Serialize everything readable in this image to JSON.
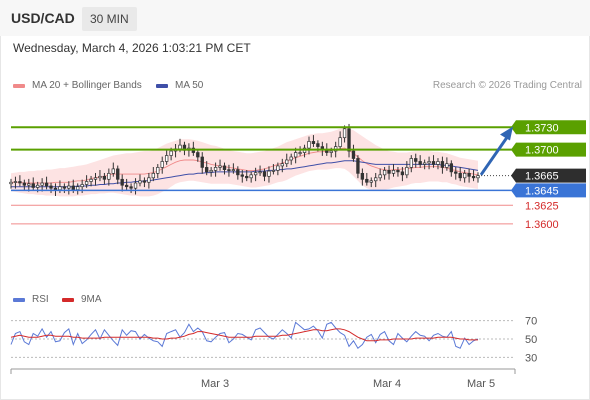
{
  "header": {
    "symbol": "USD/CAD",
    "timeframe": "30 MIN"
  },
  "datetime": "Wednesday, March 4, 2026 1:03:21 PM CET",
  "legend": {
    "bollinger_label": "MA 20 + Bollinger Bands",
    "ma50_label": "MA 50",
    "rsi_label": "RSI",
    "ma9_label": "9MA"
  },
  "research": "Research © 2026 Trading Central",
  "colors": {
    "green_level": "#5aa000",
    "support_blue": "#3a74d6",
    "red_level": "#f08a8a",
    "bollinger_fill": "#fde3e3",
    "ma20": "#f08a8a",
    "ma50": "#3f4fa8",
    "candle": "#333333",
    "arrow": "#2f65b4",
    "rsi_line": "#5b79d6",
    "rsi_ma": "#d42a2a"
  },
  "chart_data": {
    "type": "candlestick",
    "title": "USD/CAD",
    "timeframe": "30 MIN",
    "ylim": [
      1.3585,
      1.376
    ],
    "x_labels": [
      "Mar 3",
      "Mar 4",
      "Mar 5"
    ],
    "levels": [
      {
        "value": 1.373,
        "label": "1.3730",
        "kind": "resistance"
      },
      {
        "value": 1.37,
        "label": "1.3700",
        "kind": "resistance"
      },
      {
        "value": 1.3665,
        "label": "1.3665",
        "kind": "current"
      },
      {
        "value": 1.3645,
        "label": "1.3645",
        "kind": "pivot"
      },
      {
        "value": 1.3625,
        "label": "1.3625",
        "kind": "support"
      },
      {
        "value": 1.36,
        "label": "1.3600",
        "kind": "support"
      }
    ],
    "close": [
      1.3656,
      1.3657,
      1.3655,
      1.3652,
      1.3654,
      1.3649,
      1.3652,
      1.3655,
      1.3651,
      1.3648,
      1.3646,
      1.365,
      1.3648,
      1.3651,
      1.3646,
      1.365,
      1.3653,
      1.3657,
      1.366,
      1.3662,
      1.3664,
      1.366,
      1.3668,
      1.3674,
      1.366,
      1.3652,
      1.365,
      1.3648,
      1.3655,
      1.3658,
      1.3656,
      1.3662,
      1.3668,
      1.3676,
      1.3684,
      1.3692,
      1.3698,
      1.3701,
      1.3706,
      1.3699,
      1.3702,
      1.3696,
      1.369,
      1.3676,
      1.367,
      1.3672,
      1.3676,
      1.3678,
      1.3673,
      1.3672,
      1.3673,
      1.3666,
      1.3664,
      1.3662,
      1.3666,
      1.3669,
      1.367,
      1.3664,
      1.3671,
      1.3672,
      1.3678,
      1.3681,
      1.3686,
      1.369,
      1.3696,
      1.3696,
      1.3702,
      1.3711,
      1.3708,
      1.3704,
      1.37,
      1.3696,
      1.3698,
      1.3704,
      1.3716,
      1.3728,
      1.3698,
      1.3688,
      1.3668,
      1.366,
      1.3656,
      1.3658,
      1.3662,
      1.3666,
      1.3672,
      1.3668,
      1.3672,
      1.367,
      1.3666,
      1.3676,
      1.3688,
      1.3684,
      1.368,
      1.3682,
      1.3684,
      1.368,
      1.3684,
      1.3676,
      1.3681,
      1.367,
      1.3668,
      1.3662,
      1.3668,
      1.3664,
      1.3662,
      1.3665
    ],
    "bb_upper": [
      1.3668,
      1.3669,
      1.367,
      1.367,
      1.3671,
      1.3671,
      1.3672,
      1.3672,
      1.3673,
      1.3673,
      1.3674,
      1.3675,
      1.3675,
      1.3676,
      1.3677,
      1.3678,
      1.3679,
      1.368,
      1.3682,
      1.3684,
      1.3686,
      1.3688,
      1.369,
      1.3692,
      1.3693,
      1.3694,
      1.3695,
      1.3695,
      1.3696,
      1.3697,
      1.3698,
      1.3698,
      1.3699,
      1.3702,
      1.3705,
      1.3708,
      1.371,
      1.3712,
      1.3714,
      1.3714,
      1.3714,
      1.3713,
      1.3712,
      1.371,
      1.3708,
      1.3706,
      1.3705,
      1.3703,
      1.3701,
      1.3699,
      1.3698,
      1.3697,
      1.3696,
      1.3695,
      1.3695,
      1.3696,
      1.3697,
      1.3698,
      1.37,
      1.3702,
      1.3704,
      1.3707,
      1.371,
      1.3712,
      1.3714,
      1.3716,
      1.3718,
      1.372,
      1.3721,
      1.3722,
      1.3722,
      1.3723,
      1.3724,
      1.3726,
      1.3728,
      1.373,
      1.3728,
      1.3726,
      1.3722,
      1.3718,
      1.3714,
      1.371,
      1.3706,
      1.3703,
      1.37,
      1.3698,
      1.3697,
      1.3696,
      1.3696,
      1.3696,
      1.3697,
      1.3698,
      1.3698,
      1.3698,
      1.3698,
      1.3697,
      1.3697,
      1.3696,
      1.3695,
      1.3693,
      1.3691,
      1.3689,
      1.3688,
      1.3687,
      1.3686,
      1.3685
    ],
    "bb_lower": [
      1.3644,
      1.3643,
      1.3642,
      1.3641,
      1.364,
      1.364,
      1.3639,
      1.3639,
      1.3638,
      1.3638,
      1.3638,
      1.3637,
      1.3637,
      1.3637,
      1.3637,
      1.3638,
      1.3638,
      1.3639,
      1.364,
      1.364,
      1.3641,
      1.3641,
      1.3642,
      1.3642,
      1.3641,
      1.364,
      1.3639,
      1.3638,
      1.3638,
      1.3637,
      1.3637,
      1.3637,
      1.3638,
      1.364,
      1.3643,
      1.3646,
      1.365,
      1.3654,
      1.3656,
      1.3657,
      1.3658,
      1.3658,
      1.3657,
      1.3656,
      1.3655,
      1.3654,
      1.3654,
      1.3654,
      1.3654,
      1.3654,
      1.3653,
      1.3652,
      1.3651,
      1.365,
      1.3649,
      1.3649,
      1.365,
      1.3651,
      1.3652,
      1.3654,
      1.3656,
      1.3657,
      1.3659,
      1.3662,
      1.3665,
      1.3667,
      1.3669,
      1.3671,
      1.3672,
      1.3673,
      1.3673,
      1.3673,
      1.3674,
      1.3675,
      1.3675,
      1.3674,
      1.367,
      1.3664,
      1.3658,
      1.3652,
      1.3648,
      1.3646,
      1.3645,
      1.3645,
      1.3646,
      1.3647,
      1.3649,
      1.365,
      1.3651,
      1.3652,
      1.3654,
      1.3655,
      1.3655,
      1.3656,
      1.3657,
      1.3657,
      1.3657,
      1.3656,
      1.3656,
      1.3654,
      1.3653,
      1.3651,
      1.365,
      1.3649,
      1.3648,
      1.3647
    ],
    "ma20": [
      1.3656,
      1.3656,
      1.3656,
      1.3655,
      1.3655,
      1.3655,
      1.3655,
      1.3655,
      1.3655,
      1.3655,
      1.3656,
      1.3656,
      1.3656,
      1.3656,
      1.3657,
      1.3658,
      1.3658,
      1.3659,
      1.3661,
      1.3662,
      1.3663,
      1.3664,
      1.3666,
      1.3667,
      1.3667,
      1.3667,
      1.3667,
      1.3667,
      1.3667,
      1.3667,
      1.3667,
      1.3668,
      1.3669,
      1.3671,
      1.3674,
      1.3677,
      1.368,
      1.3683,
      1.3685,
      1.3686,
      1.3686,
      1.3686,
      1.3685,
      1.3683,
      1.3682,
      1.368,
      1.3679,
      1.3678,
      1.3677,
      1.3676,
      1.3675,
      1.3674,
      1.3673,
      1.3672,
      1.3672,
      1.3672,
      1.3673,
      1.3674,
      1.3676,
      1.3678,
      1.368,
      1.3682,
      1.3684,
      1.3687,
      1.3689,
      1.3691,
      1.3693,
      1.3695,
      1.3696,
      1.3697,
      1.3697,
      1.3698,
      1.3699,
      1.37,
      1.3701,
      1.3702,
      1.3699,
      1.3695,
      1.369,
      1.3685,
      1.3681,
      1.3678,
      1.3676,
      1.3674,
      1.3673,
      1.3672,
      1.3673,
      1.3673,
      1.3674,
      1.3674,
      1.3675,
      1.3676,
      1.3676,
      1.3677,
      1.3677,
      1.3677,
      1.3677,
      1.3676,
      1.3675,
      1.3673,
      1.3672,
      1.367,
      1.3669,
      1.3668,
      1.3667,
      1.3666
    ],
    "ma50": [
      1.365,
      1.365,
      1.365,
      1.365,
      1.365,
      1.365,
      1.365,
      1.365,
      1.365,
      1.365,
      1.365,
      1.365,
      1.365,
      1.365,
      1.365,
      1.3651,
      1.3651,
      1.3651,
      1.3652,
      1.3652,
      1.3653,
      1.3653,
      1.3654,
      1.3654,
      1.3655,
      1.3655,
      1.3656,
      1.3656,
      1.3657,
      1.3657,
      1.3658,
      1.3658,
      1.3659,
      1.366,
      1.3661,
      1.3662,
      1.3663,
      1.3664,
      1.3665,
      1.3666,
      1.3667,
      1.3667,
      1.3668,
      1.3668,
      1.3669,
      1.3669,
      1.367,
      1.367,
      1.367,
      1.367,
      1.367,
      1.367,
      1.367,
      1.367,
      1.367,
      1.3671,
      1.3671,
      1.3671,
      1.3672,
      1.3672,
      1.3673,
      1.3673,
      1.3674,
      1.3674,
      1.3675,
      1.3676,
      1.3677,
      1.3678,
      1.3679,
      1.368,
      1.3681,
      1.3682,
      1.3682,
      1.3683,
      1.3684,
      1.3685,
      1.3685,
      1.3685,
      1.3684,
      1.3683,
      1.3682,
      1.3681,
      1.368,
      1.368,
      1.368,
      1.368,
      1.368,
      1.368,
      1.368,
      1.368,
      1.368,
      1.368,
      1.368,
      1.368,
      1.368,
      1.368,
      1.368,
      1.3679,
      1.3679,
      1.3678,
      1.3677,
      1.3676,
      1.3675,
      1.3674,
      1.3673,
      1.3672
    ],
    "rsi": {
      "ylim": [
        25,
        75
      ],
      "ticks": [
        70,
        50,
        30
      ],
      "rsi": [
        44,
        56,
        58,
        47,
        44,
        56,
        53,
        61,
        52,
        58,
        47,
        48,
        57,
        61,
        44,
        56,
        45,
        49,
        55,
        60,
        50,
        60,
        54,
        48,
        43,
        60,
        54,
        59,
        58,
        50,
        55,
        51,
        48,
        47,
        42,
        56,
        58,
        60,
        52,
        57,
        66,
        58,
        62,
        58,
        48,
        47,
        52,
        56,
        57,
        46,
        50,
        56,
        55,
        52,
        49,
        60,
        62,
        57,
        52,
        50,
        55,
        60,
        56,
        51,
        68,
        64,
        60,
        61,
        64,
        59,
        51,
        66,
        68,
        62,
        57,
        54,
        42,
        48,
        40,
        44,
        52,
        55,
        46,
        55,
        58,
        48,
        44,
        56,
        51,
        47,
        53,
        58,
        54,
        53,
        48,
        54,
        56,
        53,
        52,
        58,
        42,
        40,
        51,
        44,
        48,
        50
      ],
      "ma9": [
        52,
        53,
        54,
        53,
        52,
        52,
        52,
        53,
        54,
        54,
        53,
        53,
        53,
        53,
        52,
        52,
        51,
        51,
        51,
        51,
        51,
        52,
        52,
        52,
        52,
        52,
        52,
        52,
        52,
        52,
        52,
        52,
        51,
        51,
        50,
        50,
        51,
        51,
        52,
        53,
        55,
        56,
        58,
        58,
        57,
        56,
        55,
        54,
        53,
        52,
        52,
        52,
        52,
        52,
        52,
        53,
        53,
        53,
        53,
        53,
        53,
        54,
        54,
        55,
        56,
        57,
        58,
        59,
        60,
        60,
        59,
        59,
        60,
        61,
        61,
        60,
        58,
        55,
        52,
        50,
        48,
        48,
        48,
        49,
        49,
        49,
        50,
        50,
        50,
        50,
        50,
        51,
        51,
        51,
        51,
        51,
        52,
        52,
        52,
        52,
        51,
        50,
        50,
        49,
        49,
        49
      ]
    }
  }
}
